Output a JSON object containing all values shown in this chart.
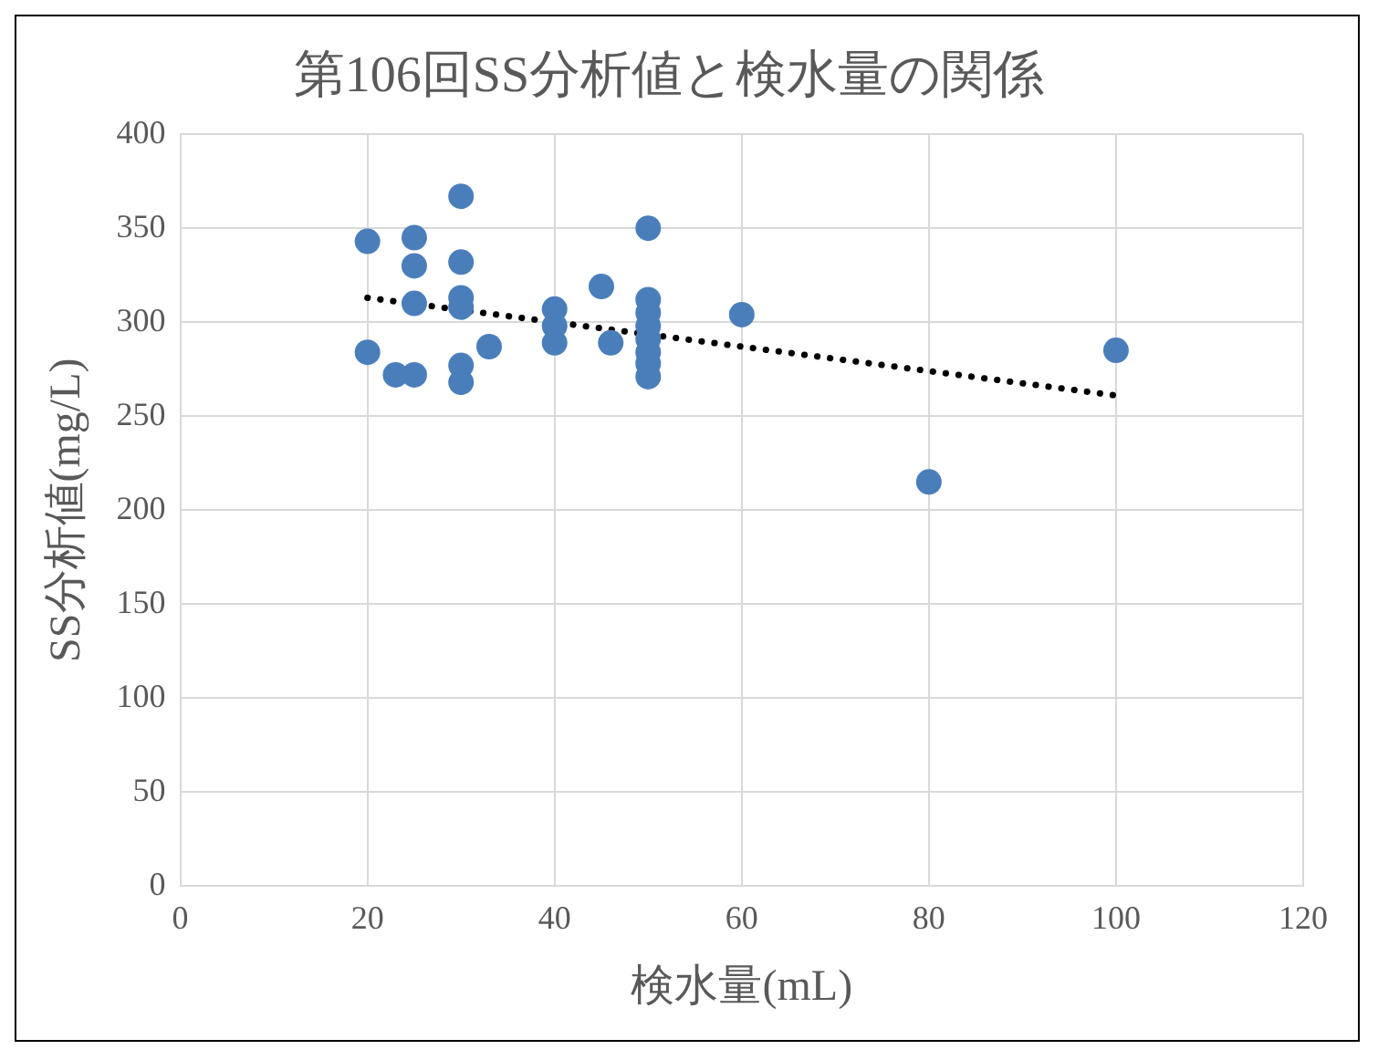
{
  "chart_data": {
    "type": "scatter",
    "title": "第106回SS分析値と検水量の関係",
    "xlabel": "検水量(mL)",
    "ylabel": "SS分析値(mg/L)",
    "xlim": [
      0,
      120
    ],
    "xticks": [
      0,
      20,
      40,
      60,
      80,
      100,
      120
    ],
    "ylim": [
      0,
      400
    ],
    "yticks": [
      0,
      50,
      100,
      150,
      200,
      250,
      300,
      350,
      400
    ],
    "grid": true,
    "legend": false,
    "marker": "circle",
    "series": [
      {
        "color": "#4a7ebb",
        "x": [
          20,
          20,
          23,
          25,
          25,
          25,
          25,
          30,
          30,
          30,
          30,
          30,
          30,
          33,
          40,
          40,
          40,
          45,
          46,
          50,
          50,
          50,
          50,
          50,
          50,
          50,
          50,
          60,
          80,
          100
        ],
        "values": [
          343,
          284,
          272,
          272,
          345,
          330,
          310,
          367,
          332,
          313,
          308,
          277,
          268,
          287,
          307,
          298,
          289,
          319,
          289,
          350,
          312,
          305,
          298,
          291,
          284,
          278,
          271,
          304,
          215,
          285
        ]
      },
      {
        "type": "line",
        "color": "#000000",
        "line_style": "dotted",
        "marker": "none",
        "x": [
          20,
          100
        ],
        "values": [
          313,
          261
        ]
      }
    ]
  }
}
